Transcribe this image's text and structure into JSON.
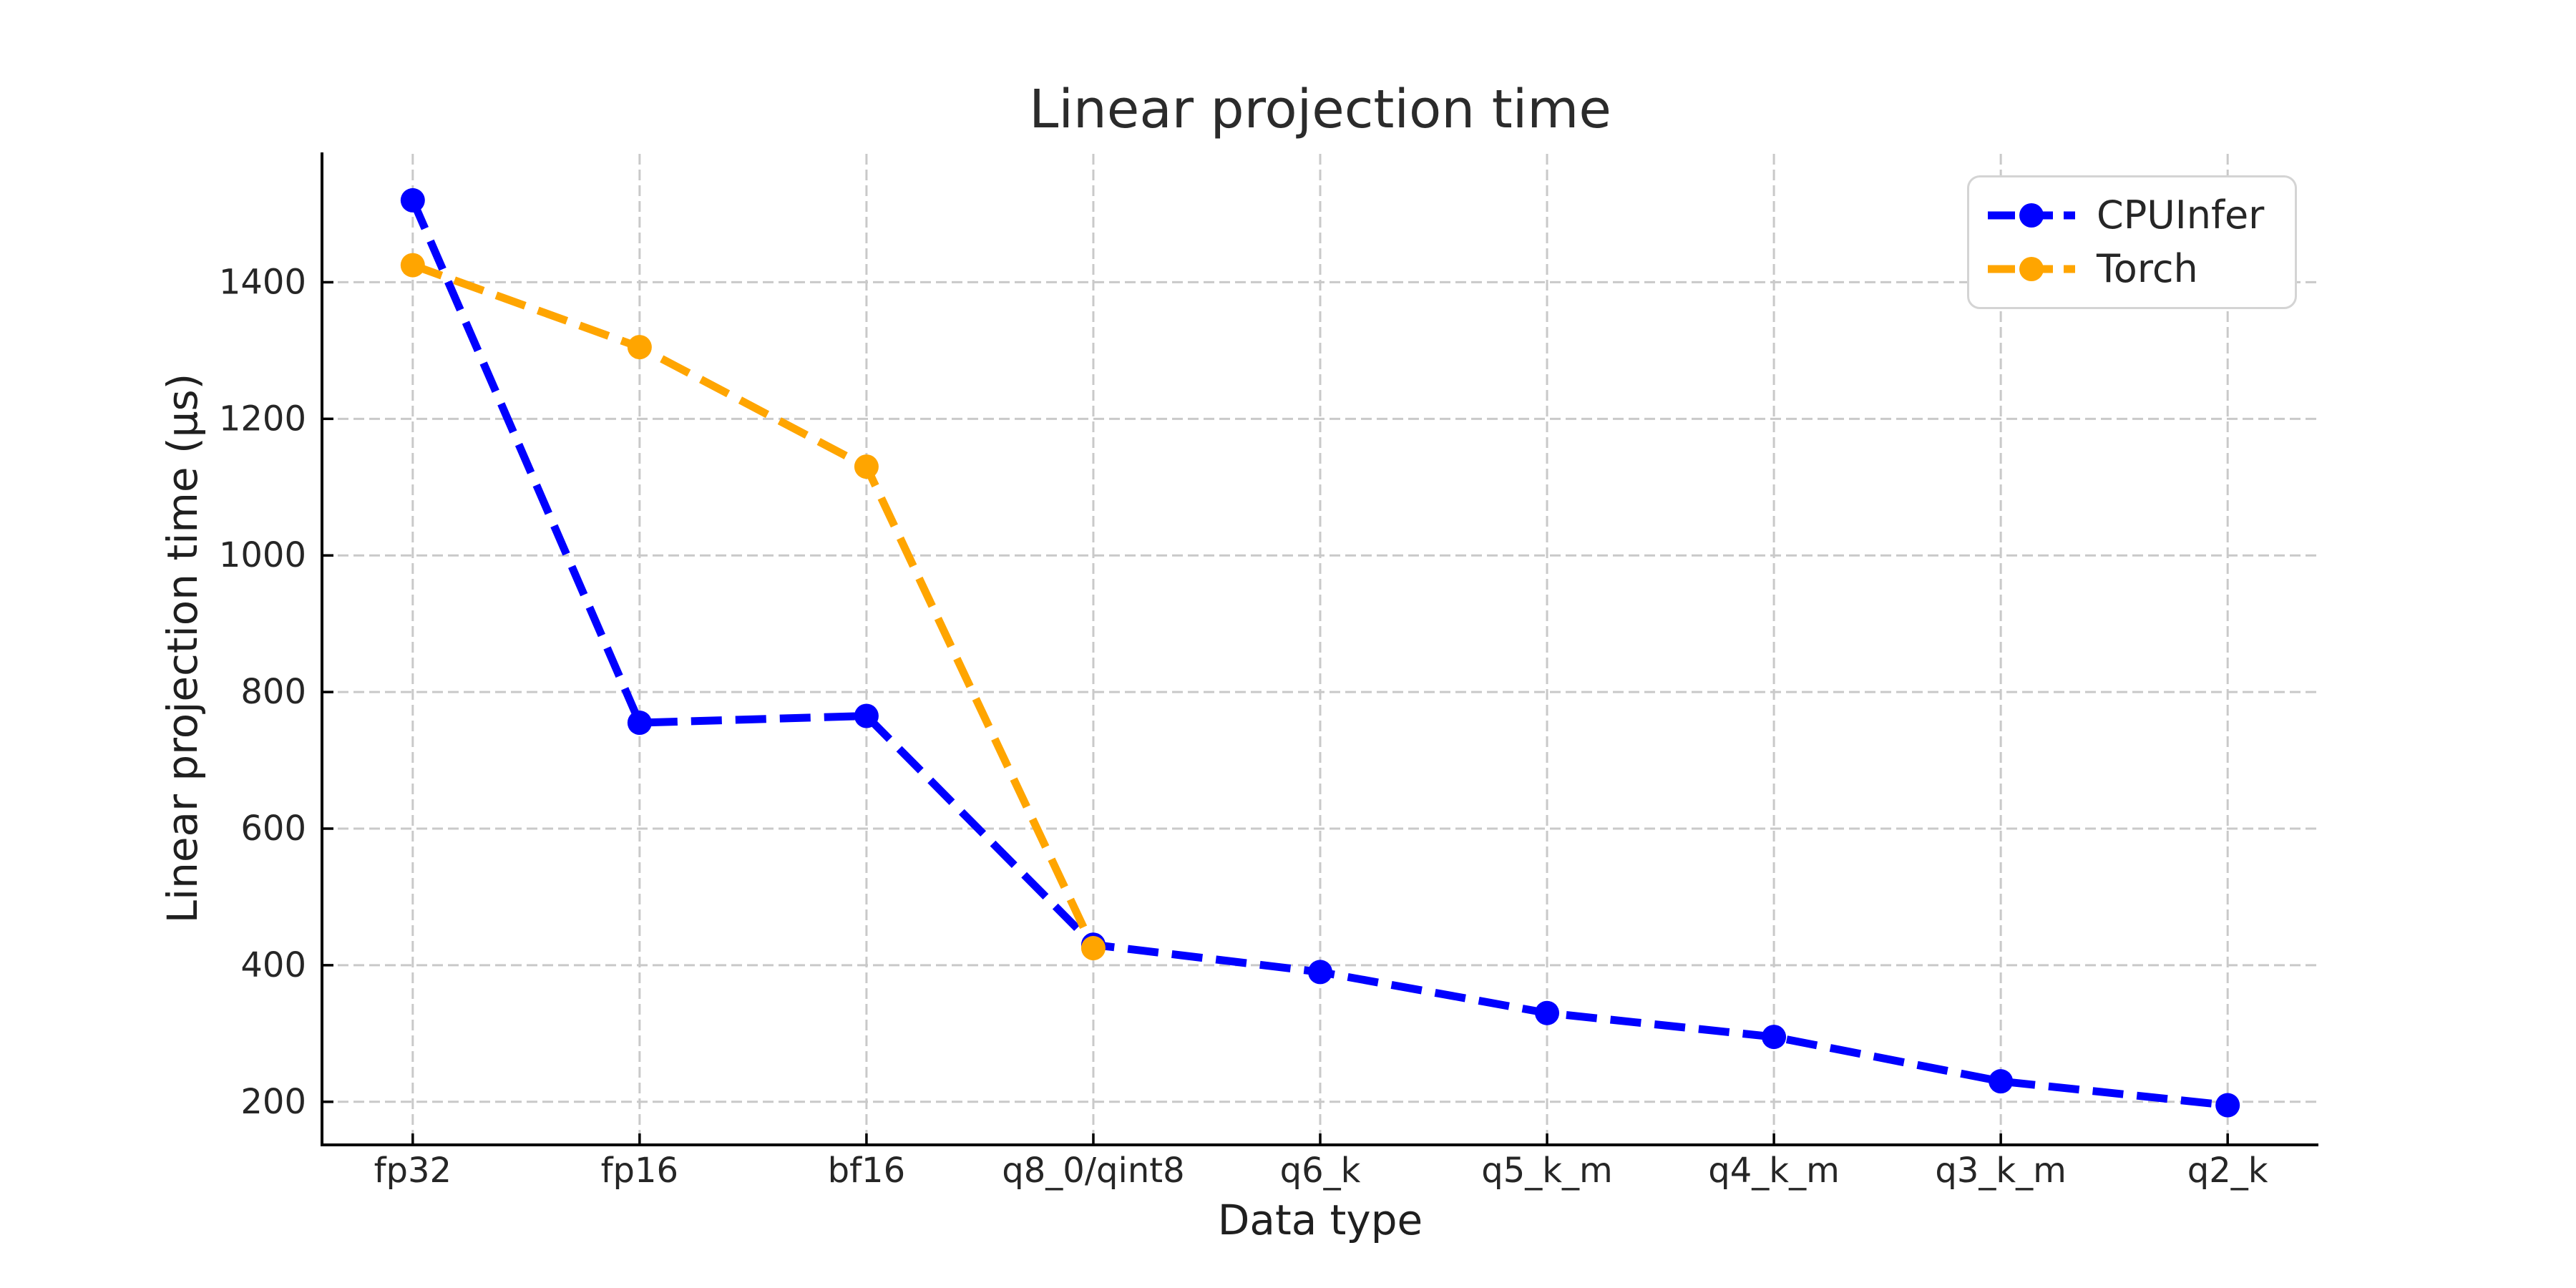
{
  "chart_data": {
    "type": "line",
    "title": "Linear projection time",
    "xlabel": "Data type",
    "ylabel": "Linear projection time (μs)",
    "categories": [
      "fp32",
      "fp16",
      "bf16",
      "q8_0/qint8",
      "q6_k",
      "q5_k_m",
      "q4_k_m",
      "q3_k_m",
      "q2_k"
    ],
    "series": [
      {
        "name": "CPUInfer",
        "color": "#0000ff",
        "line_style": "dashed",
        "marker": "circle",
        "values": [
          1520,
          755,
          765,
          430,
          390,
          330,
          295,
          230,
          195
        ]
      },
      {
        "name": "Torch",
        "color": "#ffa500",
        "line_style": "dashed",
        "marker": "circle",
        "values": [
          1425,
          1305,
          1130,
          425
        ]
      }
    ],
    "yticks": [
      200,
      400,
      600,
      800,
      1000,
      1200,
      1400
    ],
    "ylim": [
      139,
      1588
    ],
    "grid": true,
    "grid_color": "#c9c9c9",
    "legend_position": "upper right"
  }
}
